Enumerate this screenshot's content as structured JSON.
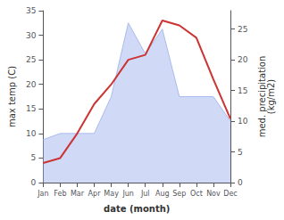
{
  "chart_data": {
    "type": "line",
    "xlabel": "date (month)",
    "ylabel": "max temp (C)",
    "y2label": "med. precipitation\n(kg/m2)",
    "categories": [
      "Jan",
      "Feb",
      "Mar",
      "Apr",
      "May",
      "Jun",
      "Jul",
      "Aug",
      "Sep",
      "Oct",
      "Nov",
      "Dec"
    ],
    "series": [
      {
        "type": "area",
        "color": "#aabbee",
        "axis": "y2",
        "values": [
          7,
          8,
          8,
          8,
          14,
          26,
          21,
          25,
          14,
          14,
          14,
          10
        ]
      },
      {
        "type": "line",
        "color": "#cc3333",
        "values": [
          4,
          5,
          10,
          16,
          20,
          25,
          26,
          33,
          32,
          29.5,
          21,
          13
        ]
      }
    ],
    "ylim": [
      0,
      35
    ],
    "yticks": [
      0,
      5,
      10,
      15,
      20,
      25,
      30,
      35
    ],
    "y2lim": [
      0,
      28
    ],
    "y2ticks": [
      0,
      5,
      10,
      15,
      20,
      25
    ],
    "grid": false
  }
}
